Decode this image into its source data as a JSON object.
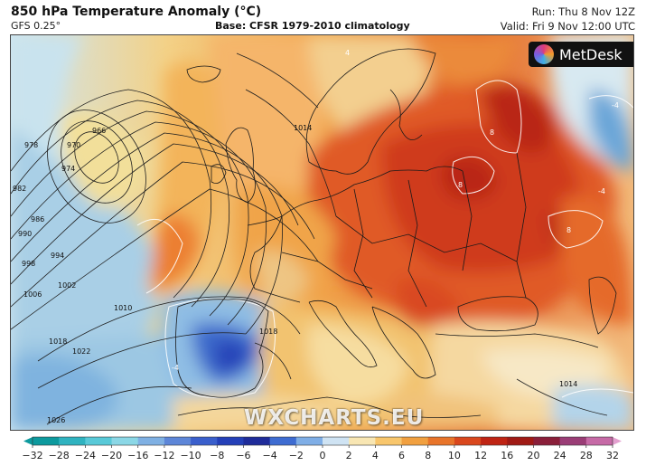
{
  "header": {
    "title": "850 hPa Temperature Anomaly (°C)",
    "model": "GFS 0.25°",
    "base": "Base: CFSR 1979-2010 climatology",
    "run": "Run: Thu 8 Nov 12Z",
    "valid": "Valid: Fri 9 Nov 12:00 UTC"
  },
  "logo": {
    "text": "MetDesk",
    "icon": "metdesk-logo-icon"
  },
  "watermark": "WXCHARTS.EU",
  "isobar_labels": [
    "970",
    "966",
    "974",
    "978",
    "982",
    "986",
    "990",
    "994",
    "998",
    "1002",
    "1006",
    "1010",
    "1018",
    "1022",
    "1026",
    "1014",
    "1018",
    "1014"
  ],
  "anomaly_labels": [
    "8",
    "8",
    "8",
    "-4",
    "-4",
    "4",
    "-4"
  ],
  "colorbar": {
    "ticks": [
      "−32",
      "−28",
      "−24",
      "−20",
      "−16",
      "−12",
      "−10",
      "−8",
      "−6",
      "−4",
      "−2",
      "0",
      "2",
      "4",
      "6",
      "8",
      "10",
      "12",
      "16",
      "20",
      "24",
      "28",
      "32"
    ],
    "colors": [
      "#0d9a9e",
      "#2fb3c0",
      "#58c9d8",
      "#8bd7e6",
      "#7fb0e3",
      "#5d86d8",
      "#3a5fcc",
      "#2440b8",
      "#1f2c9a",
      "#3e6cd1",
      "#7faee6",
      "#cfe3f3",
      "#f8e6b3",
      "#f8c66c",
      "#f1a040",
      "#e8742a",
      "#d9471d",
      "#bf2414",
      "#a01a15",
      "#8a1f3a",
      "#9a3d76",
      "#c66aa6",
      "#e3a0cf"
    ]
  }
}
